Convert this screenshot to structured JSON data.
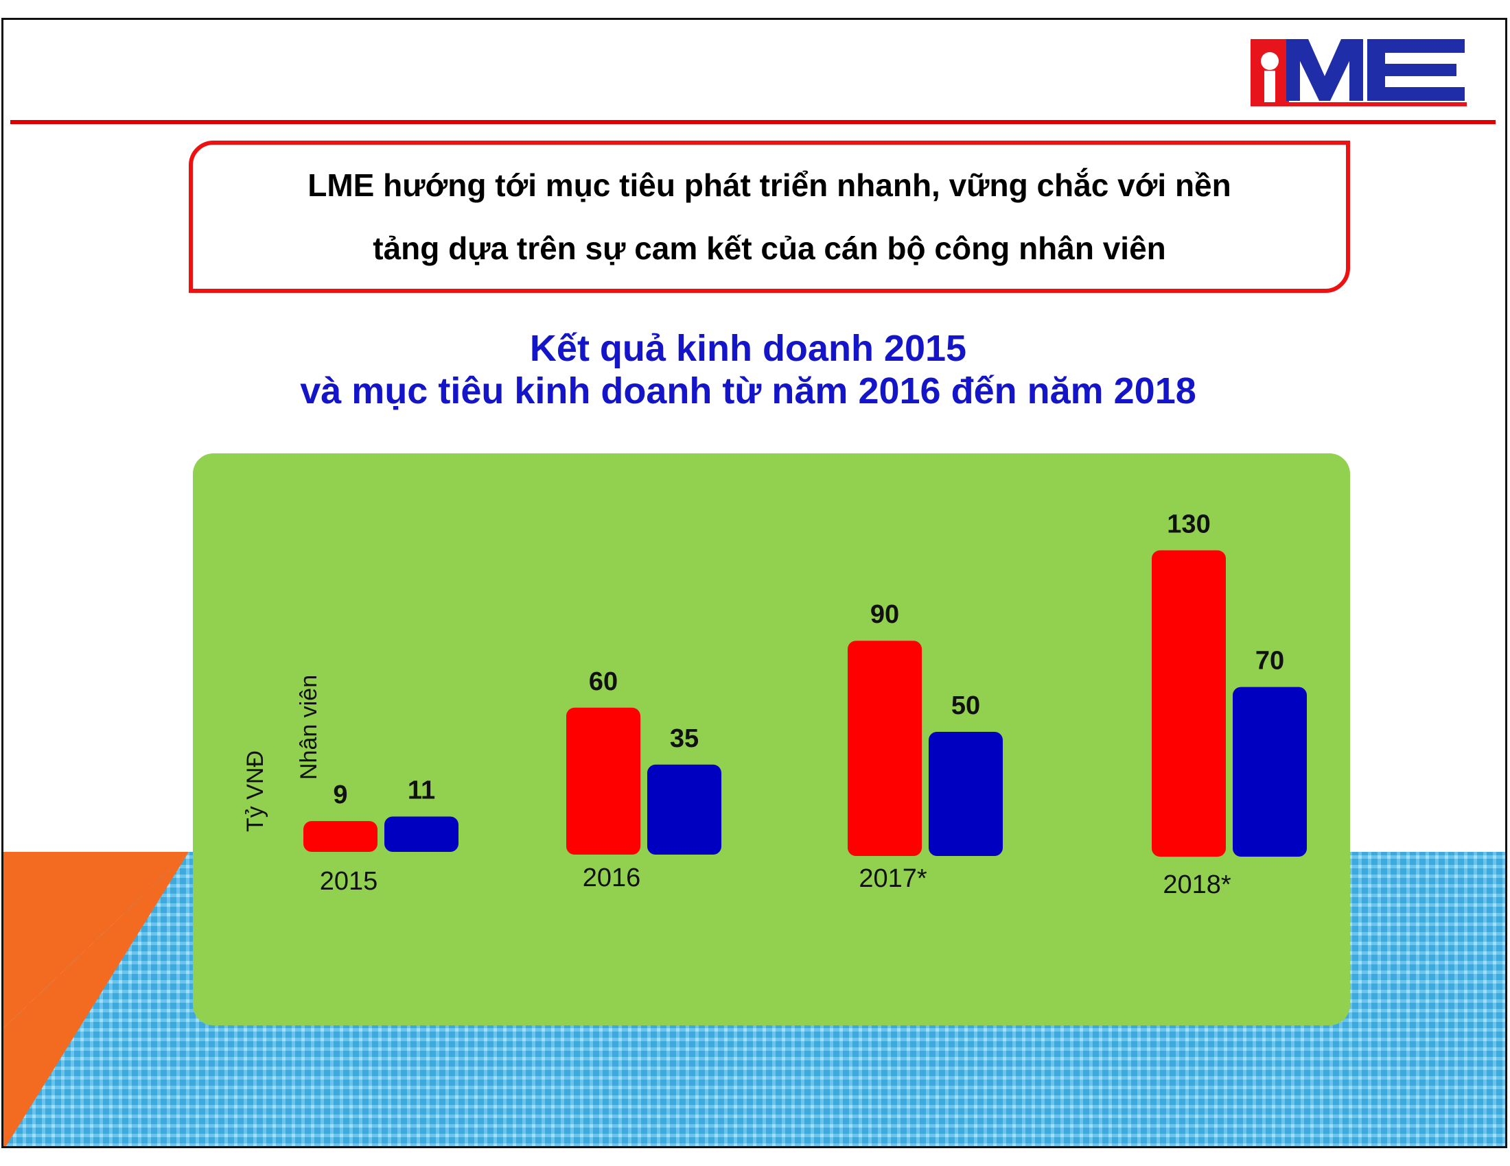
{
  "logo": {
    "text": "LME",
    "colors": {
      "red": "#e8141c",
      "blue": "#1f2ea8"
    }
  },
  "callout": {
    "line1": "LME hướng tới mục tiêu phát triển nhanh, vững chắc với nền",
    "line2": "tảng dựa trên sự cam kết của cán bộ công nhân viên"
  },
  "heading": {
    "line1": "Kết quả kinh doanh 2015",
    "line2": "và mục tiêu kinh doanh từ năm 2016 đến năm 2018"
  },
  "colors": {
    "accent_red": "#ff0000",
    "accent_blue": "#0000c0",
    "panel_green": "#92d050",
    "heading_blue": "#1414c8",
    "orange": "#f26b21",
    "pattern_blue": "#3fa9dc"
  },
  "chart_data": {
    "type": "bar",
    "categories": [
      "2015",
      "2016",
      "2017*",
      "2018*"
    ],
    "series": [
      {
        "name": "Tỷ VNĐ",
        "values": [
          9,
          60,
          90,
          130
        ],
        "color": "#ff0000"
      },
      {
        "name": "Nhân viên",
        "values": [
          11,
          35,
          50,
          70
        ],
        "color": "#0000c0"
      }
    ],
    "title": "Kết quả kinh doanh 2015\nvà mục tiêu kinh doanh từ năm 2016 đến năm 2018",
    "xlabel": "",
    "ylabel": "",
    "grid": false,
    "legend": "rotated labels beside the first group"
  }
}
